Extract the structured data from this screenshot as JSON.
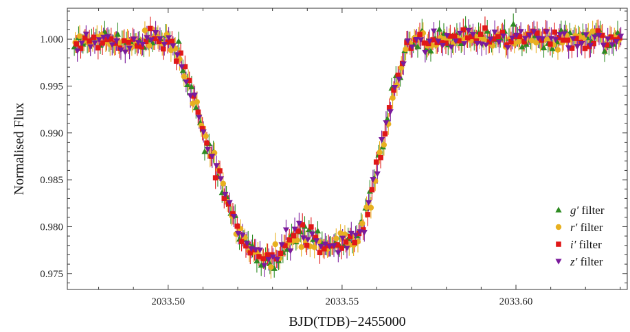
{
  "chart_data": {
    "type": "scatter",
    "xlabel": "BJD(TDB)−2455000",
    "ylabel": "Normalised Flux",
    "xlim": [
      2033.471,
      2033.632
    ],
    "ylim": [
      0.9733,
      1.0033
    ],
    "xticks": [
      2033.5,
      2033.55,
      2033.6
    ],
    "xtick_labels": [
      "2033.50",
      "2033.55",
      "2033.60"
    ],
    "yticks": [
      0.975,
      0.98,
      0.985,
      0.99,
      0.995,
      1.0
    ],
    "ytick_labels": [
      "0.975",
      "0.980",
      "0.985",
      "0.990",
      "0.995",
      "1.000"
    ],
    "legend_position": "bottom-right",
    "curve_knots": [
      [
        2033.471,
        1.0
      ],
      [
        2033.5,
        1.0
      ],
      [
        2033.503,
        0.9985
      ],
      [
        2033.507,
        0.994
      ],
      [
        2033.512,
        0.988
      ],
      [
        2033.516,
        0.984
      ],
      [
        2033.52,
        0.9795
      ],
      [
        2033.524,
        0.9775
      ],
      [
        2033.528,
        0.9765
      ],
      [
        2033.531,
        0.9768
      ],
      [
        2033.534,
        0.9782
      ],
      [
        2033.5375,
        0.9792
      ],
      [
        2033.541,
        0.9788
      ],
      [
        2033.545,
        0.9778
      ],
      [
        2033.55,
        0.978
      ],
      [
        2033.554,
        0.9787
      ],
      [
        2033.557,
        0.981
      ],
      [
        2033.56,
        0.986
      ],
      [
        2033.563,
        0.991
      ],
      [
        2033.566,
        0.996
      ],
      [
        2033.569,
        0.9995
      ],
      [
        2033.572,
        1.0
      ],
      [
        2033.632,
        1.0
      ]
    ],
    "cadence_days": 0.00125,
    "error_bar": 0.0011,
    "series": [
      {
        "name": "g′ filter",
        "letter": "g",
        "marker": "triangle-up",
        "color": "#2e8b22",
        "x_offset": 0.0,
        "scatter": 0.00065,
        "seed": 11
      },
      {
        "name": "r′ filter",
        "letter": "r",
        "marker": "circle",
        "color": "#e8b020",
        "x_offset": 0.0003,
        "scatter": 0.00055,
        "seed": 23
      },
      {
        "name": "i′ filter",
        "letter": "i",
        "marker": "square",
        "color": "#e01818",
        "x_offset": 0.0006,
        "scatter": 0.00055,
        "seed": 37
      },
      {
        "name": "z′ filter",
        "letter": "z",
        "marker": "triangle-down",
        "color": "#7a1a9c",
        "x_offset": 0.0009,
        "scatter": 0.0006,
        "seed": 53
      }
    ]
  }
}
